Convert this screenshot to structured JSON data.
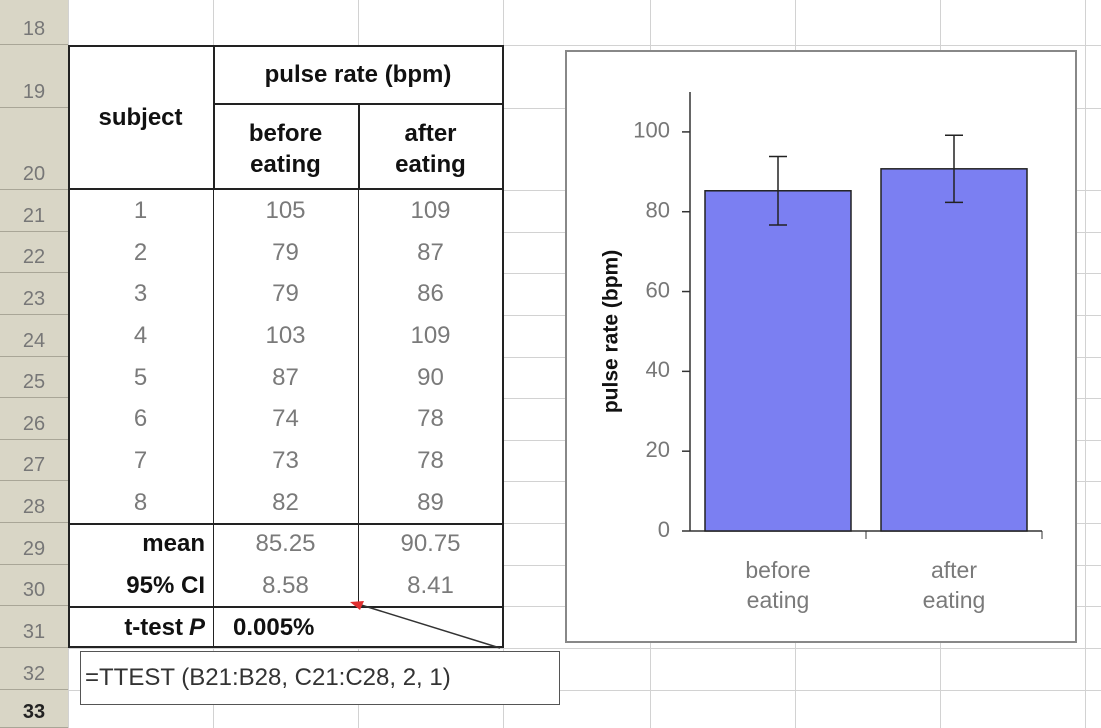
{
  "row_numbers": [
    18,
    19,
    20,
    21,
    22,
    23,
    24,
    25,
    26,
    27,
    28,
    29,
    30,
    31,
    32,
    33
  ],
  "table": {
    "group_header": "pulse rate (bpm)",
    "columns": [
      "subject",
      "before eating",
      "after eating"
    ],
    "rows": [
      [
        1,
        105,
        109
      ],
      [
        2,
        79,
        87
      ],
      [
        3,
        79,
        86
      ],
      [
        4,
        103,
        109
      ],
      [
        5,
        87,
        90
      ],
      [
        6,
        74,
        78
      ],
      [
        7,
        73,
        78
      ],
      [
        8,
        82,
        89
      ]
    ],
    "mean": {
      "label": "mean",
      "values": [
        85.25,
        90.75
      ]
    },
    "ci": {
      "label": "95% CI",
      "values": [
        8.58,
        8.41
      ]
    },
    "ttest": {
      "label": "t-test",
      "label_italic": "P",
      "value": "0.005%"
    }
  },
  "callout": "=TTEST (B21:B28, C21:C28, 2, 1)",
  "chart_data": {
    "type": "bar",
    "y_label": "pulse rate (bpm)",
    "categories": [
      "before eating",
      "after eating"
    ],
    "values": [
      85.25,
      90.75
    ],
    "errors": [
      8.58,
      8.41
    ],
    "color": "#7b7ff2",
    "ylim": [
      0,
      110
    ],
    "yticks": [
      0,
      20,
      40,
      60,
      80,
      100
    ]
  }
}
